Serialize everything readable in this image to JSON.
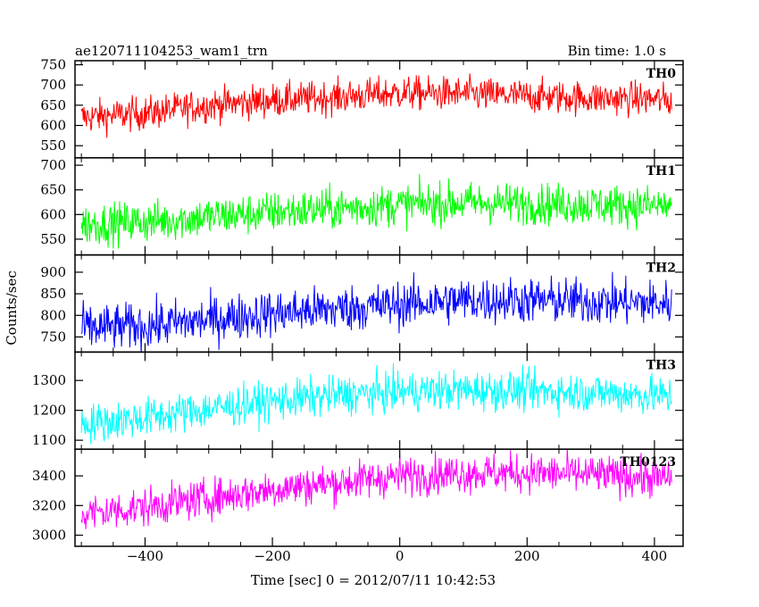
{
  "header": {
    "title": "ae120711104253_wam1_trn",
    "bin_time": "Bin time: 1.0 s"
  },
  "chart_data": {
    "type": "line",
    "x_label": "Time [sec] 0 = 2012/07/11 10:42:53",
    "y_label": "Counts/sec",
    "x_range": [
      -510,
      445
    ],
    "x_ticks": [
      -400,
      -200,
      0,
      200,
      400
    ],
    "x_tick_labels": [
      "−400",
      "−200",
      "0",
      "200",
      "400"
    ],
    "x_data_range": [
      -500,
      427
    ],
    "grid": false,
    "panels": [
      {
        "name": "TH0",
        "color": "#ff0000",
        "ylim": [
          520,
          760
        ],
        "ticks": [
          550,
          600,
          650,
          700,
          750
        ],
        "trend": {
          "x": [
            -500,
            -400,
            -300,
            -200,
            -100,
            0,
            100,
            200,
            300,
            400,
            427
          ],
          "y": [
            620,
            630,
            650,
            662,
            670,
            680,
            678,
            672,
            668,
            665,
            660
          ]
        },
        "noise_amplitude": 35
      },
      {
        "name": "TH1",
        "color": "#00ff00",
        "ylim": [
          518,
          715
        ],
        "ticks": [
          550,
          600,
          650,
          700
        ],
        "trend": {
          "x": [
            -500,
            -400,
            -300,
            -200,
            -100,
            0,
            100,
            200,
            300,
            400,
            427
          ],
          "y": [
            580,
            585,
            595,
            605,
            612,
            620,
            624,
            622,
            620,
            618,
            618
          ]
        },
        "noise_amplitude": 35
      },
      {
        "name": "TH2",
        "color": "#0000ff",
        "ylim": [
          715,
          940
        ],
        "ticks": [
          750,
          800,
          850,
          900
        ],
        "trend": {
          "x": [
            -500,
            -400,
            -300,
            -200,
            -100,
            0,
            100,
            200,
            300,
            400,
            427
          ],
          "y": [
            770,
            775,
            790,
            805,
            815,
            825,
            835,
            835,
            832,
            828,
            828
          ]
        },
        "noise_amplitude": 45
      },
      {
        "name": "TH3",
        "color": "#00ffff",
        "ylim": [
          1070,
          1395
        ],
        "ticks": [
          1100,
          1200,
          1300
        ],
        "trend": {
          "x": [
            -500,
            -400,
            -300,
            -200,
            -100,
            0,
            100,
            200,
            300,
            400,
            427
          ],
          "y": [
            1155,
            1175,
            1205,
            1230,
            1250,
            1262,
            1268,
            1265,
            1260,
            1250,
            1245
          ]
        },
        "noise_amplitude": 55
      },
      {
        "name": "TH0123",
        "color": "#ff00ff",
        "ylim": [
          2925,
          3580
        ],
        "ticks": [
          3000,
          3200,
          3400
        ],
        "trend": {
          "x": [
            -500,
            -400,
            -300,
            -200,
            -100,
            0,
            100,
            200,
            300,
            400,
            427
          ],
          "y": [
            3140,
            3190,
            3250,
            3310,
            3355,
            3400,
            3420,
            3420,
            3410,
            3385,
            3380
          ]
        },
        "noise_amplitude": 110
      }
    ]
  }
}
